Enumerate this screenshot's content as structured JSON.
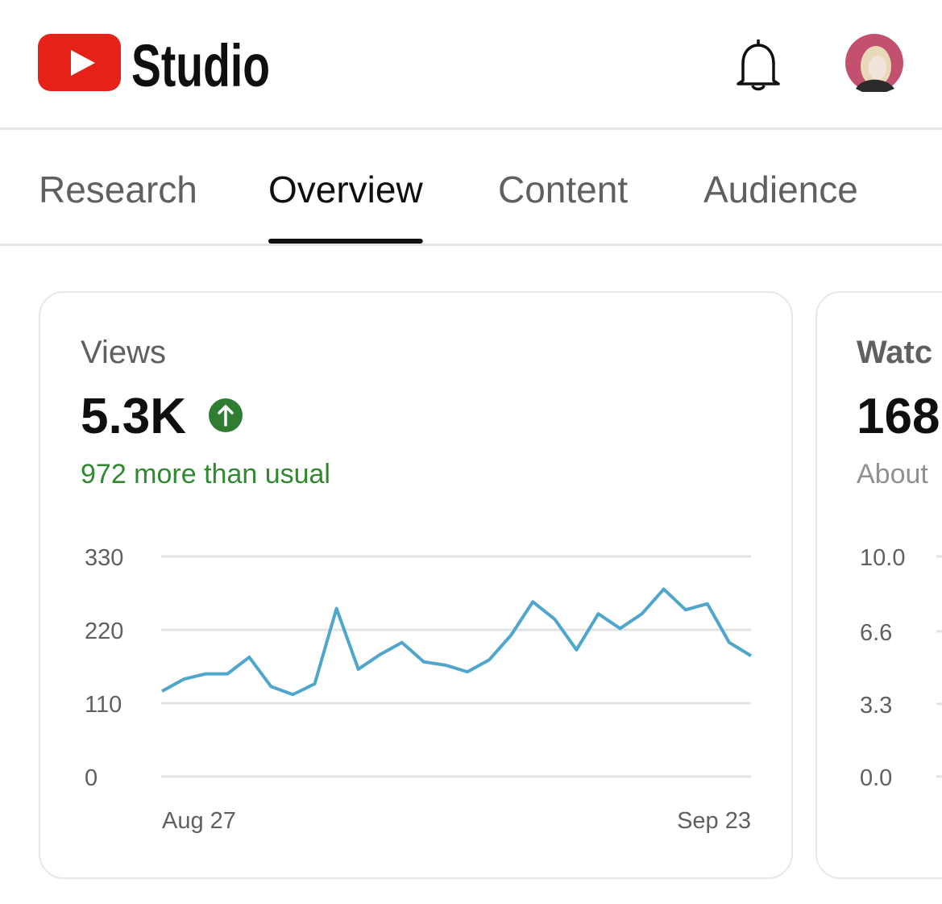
{
  "header": {
    "logo_text": "Studio"
  },
  "tabs": [
    "Research",
    "Overview",
    "Content",
    "Audience"
  ],
  "active_tab": 1,
  "cards": [
    {
      "title": "Views",
      "metric": "5.3K",
      "note": "972 more than usual"
    },
    {
      "title": "Watc",
      "metric": "168",
      "note": "About"
    }
  ],
  "chart_data": [
    {
      "type": "line",
      "categories": [
        "Aug 27",
        null,
        null,
        null,
        null,
        null,
        null,
        null,
        null,
        null,
        null,
        null,
        null,
        null,
        null,
        null,
        null,
        null,
        null,
        null,
        null,
        null,
        null,
        null,
        null,
        null,
        null,
        "Sep 23"
      ],
      "values": [
        128,
        146,
        154,
        154,
        179,
        135,
        123,
        139,
        252,
        161,
        183,
        201,
        172,
        167,
        157,
        175,
        212,
        262,
        236,
        190,
        244,
        222,
        244,
        281,
        250,
        259,
        201,
        181
      ],
      "color": "#4ea6cc",
      "ylim": [
        0,
        330
      ],
      "yticks": [
        0,
        110,
        220,
        330
      ],
      "grid": true
    },
    {
      "type": "line",
      "ylim": [
        0,
        10
      ],
      "yticks": [
        {
          "value": 0,
          "label": "0.0"
        },
        3.3,
        6.6,
        {
          "value": 10,
          "label": "10.0"
        }
      ],
      "grid": true
    }
  ]
}
